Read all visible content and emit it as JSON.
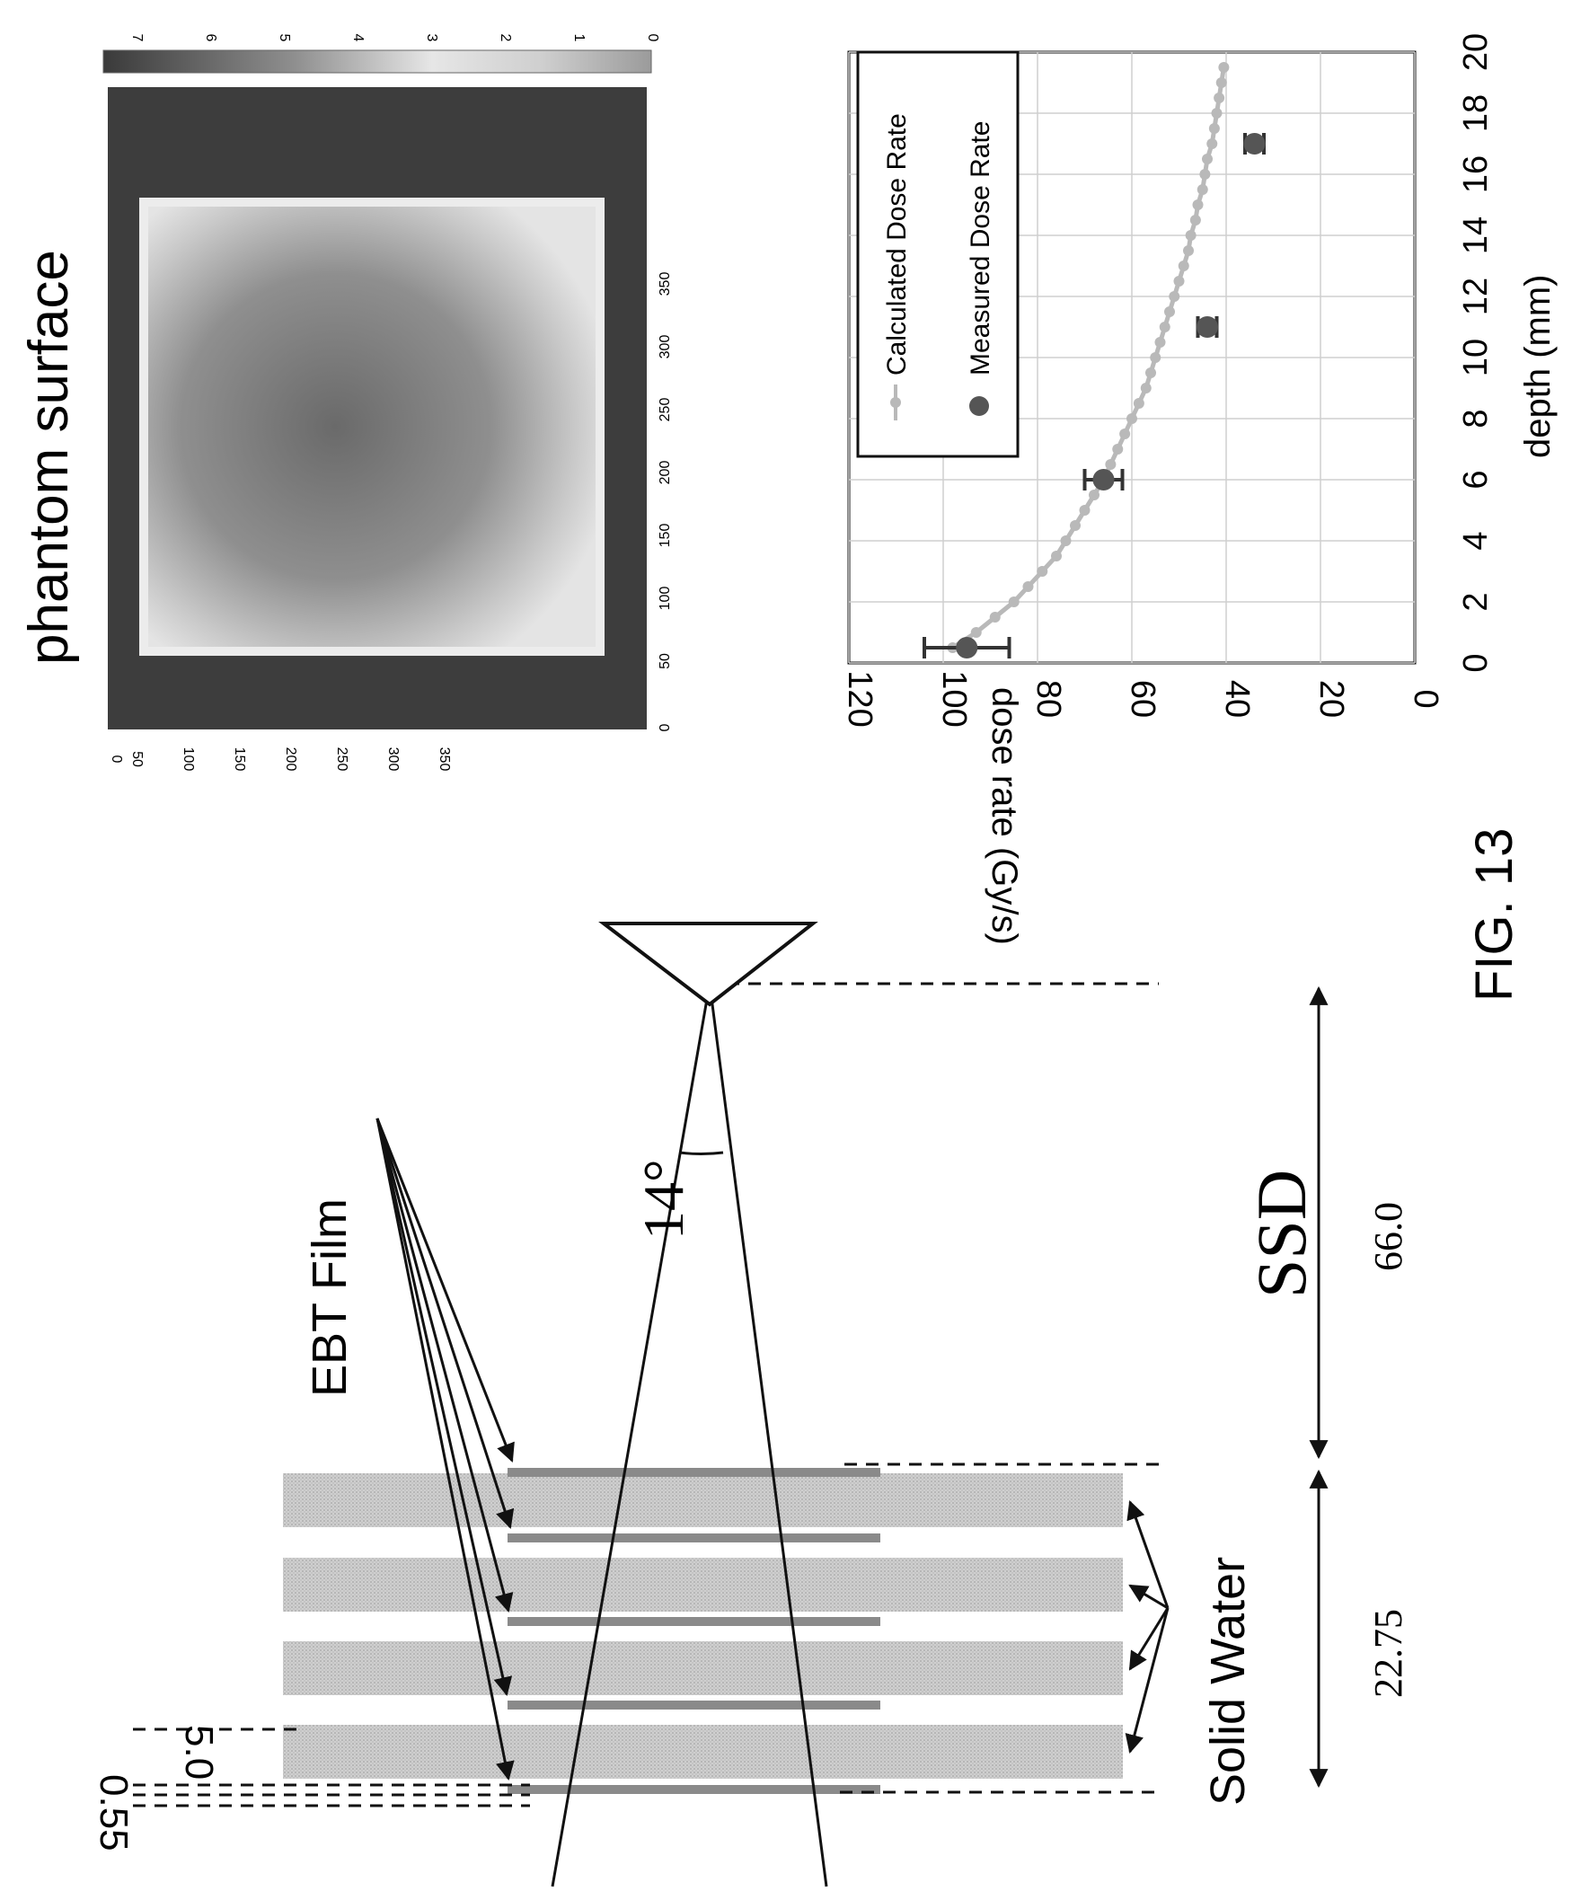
{
  "figure": {
    "label": "FIG. 13",
    "setup": {
      "ebt_label": "EBT Film",
      "solid_water_label": "Solid Water",
      "ssd_label": "SSD",
      "ssd_value": "66.0",
      "depth_value": "22.75",
      "film_thickness": "0.55",
      "slab_thickness": "5.0",
      "angle": "14°"
    },
    "film_image": {
      "title": "phantom surface",
      "x_ticks": [
        "0",
        "50",
        "100",
        "150",
        "200",
        "250",
        "300",
        "350"
      ],
      "y_ticks": [
        "50",
        "100",
        "150",
        "200",
        "250",
        "300",
        "350"
      ],
      "colorbar_ticks": [
        "0",
        "1",
        "2",
        "3",
        "4",
        "5",
        "6",
        "7"
      ]
    }
  },
  "chart_data": {
    "type": "scatter",
    "title": "",
    "xlabel": "depth (mm)",
    "ylabel": "dose rate (Gy/s)",
    "xlim": [
      0,
      20
    ],
    "ylim": [
      0,
      120
    ],
    "x_ticks": [
      "0",
      "2",
      "4",
      "6",
      "8",
      "10",
      "12",
      "14",
      "16",
      "18",
      "20"
    ],
    "y_ticks": [
      "0",
      "20",
      "40",
      "60",
      "80",
      "100",
      "120"
    ],
    "grid": true,
    "legend_position": "top-left",
    "series": [
      {
        "name": "Calculated Dose Rate",
        "kind": "line",
        "color": "#b9b9b9",
        "x": [
          0.5,
          1.0,
          1.5,
          2.0,
          2.5,
          3.0,
          3.5,
          4.0,
          4.5,
          5.0,
          5.5,
          6.0,
          6.5,
          7.0,
          7.5,
          8.0,
          8.5,
          9.0,
          9.5,
          10.0,
          10.5,
          11.0,
          11.5,
          12.0,
          12.5,
          13.0,
          13.5,
          14.0,
          14.5,
          15.0,
          15.5,
          16.0,
          16.5,
          17.0,
          17.5,
          18.0,
          18.5,
          19.0,
          19.5
        ],
        "y": [
          98,
          93,
          89,
          85,
          82,
          79,
          76,
          74,
          72,
          70,
          68,
          66,
          64.5,
          63,
          61.5,
          60,
          58.5,
          57,
          56,
          55,
          54,
          53,
          52,
          51,
          50,
          49,
          48,
          47.5,
          46.5,
          46,
          45,
          44.5,
          44,
          43,
          42.5,
          42,
          41.5,
          41,
          40.5
        ]
      },
      {
        "name": "Measured Dose Rate",
        "kind": "points",
        "color": "#555555",
        "x": [
          0.5,
          6.0,
          11.0,
          17.0
        ],
        "y": [
          95,
          66,
          44,
          34
        ],
        "error": [
          9,
          4,
          2,
          2
        ]
      }
    ]
  }
}
